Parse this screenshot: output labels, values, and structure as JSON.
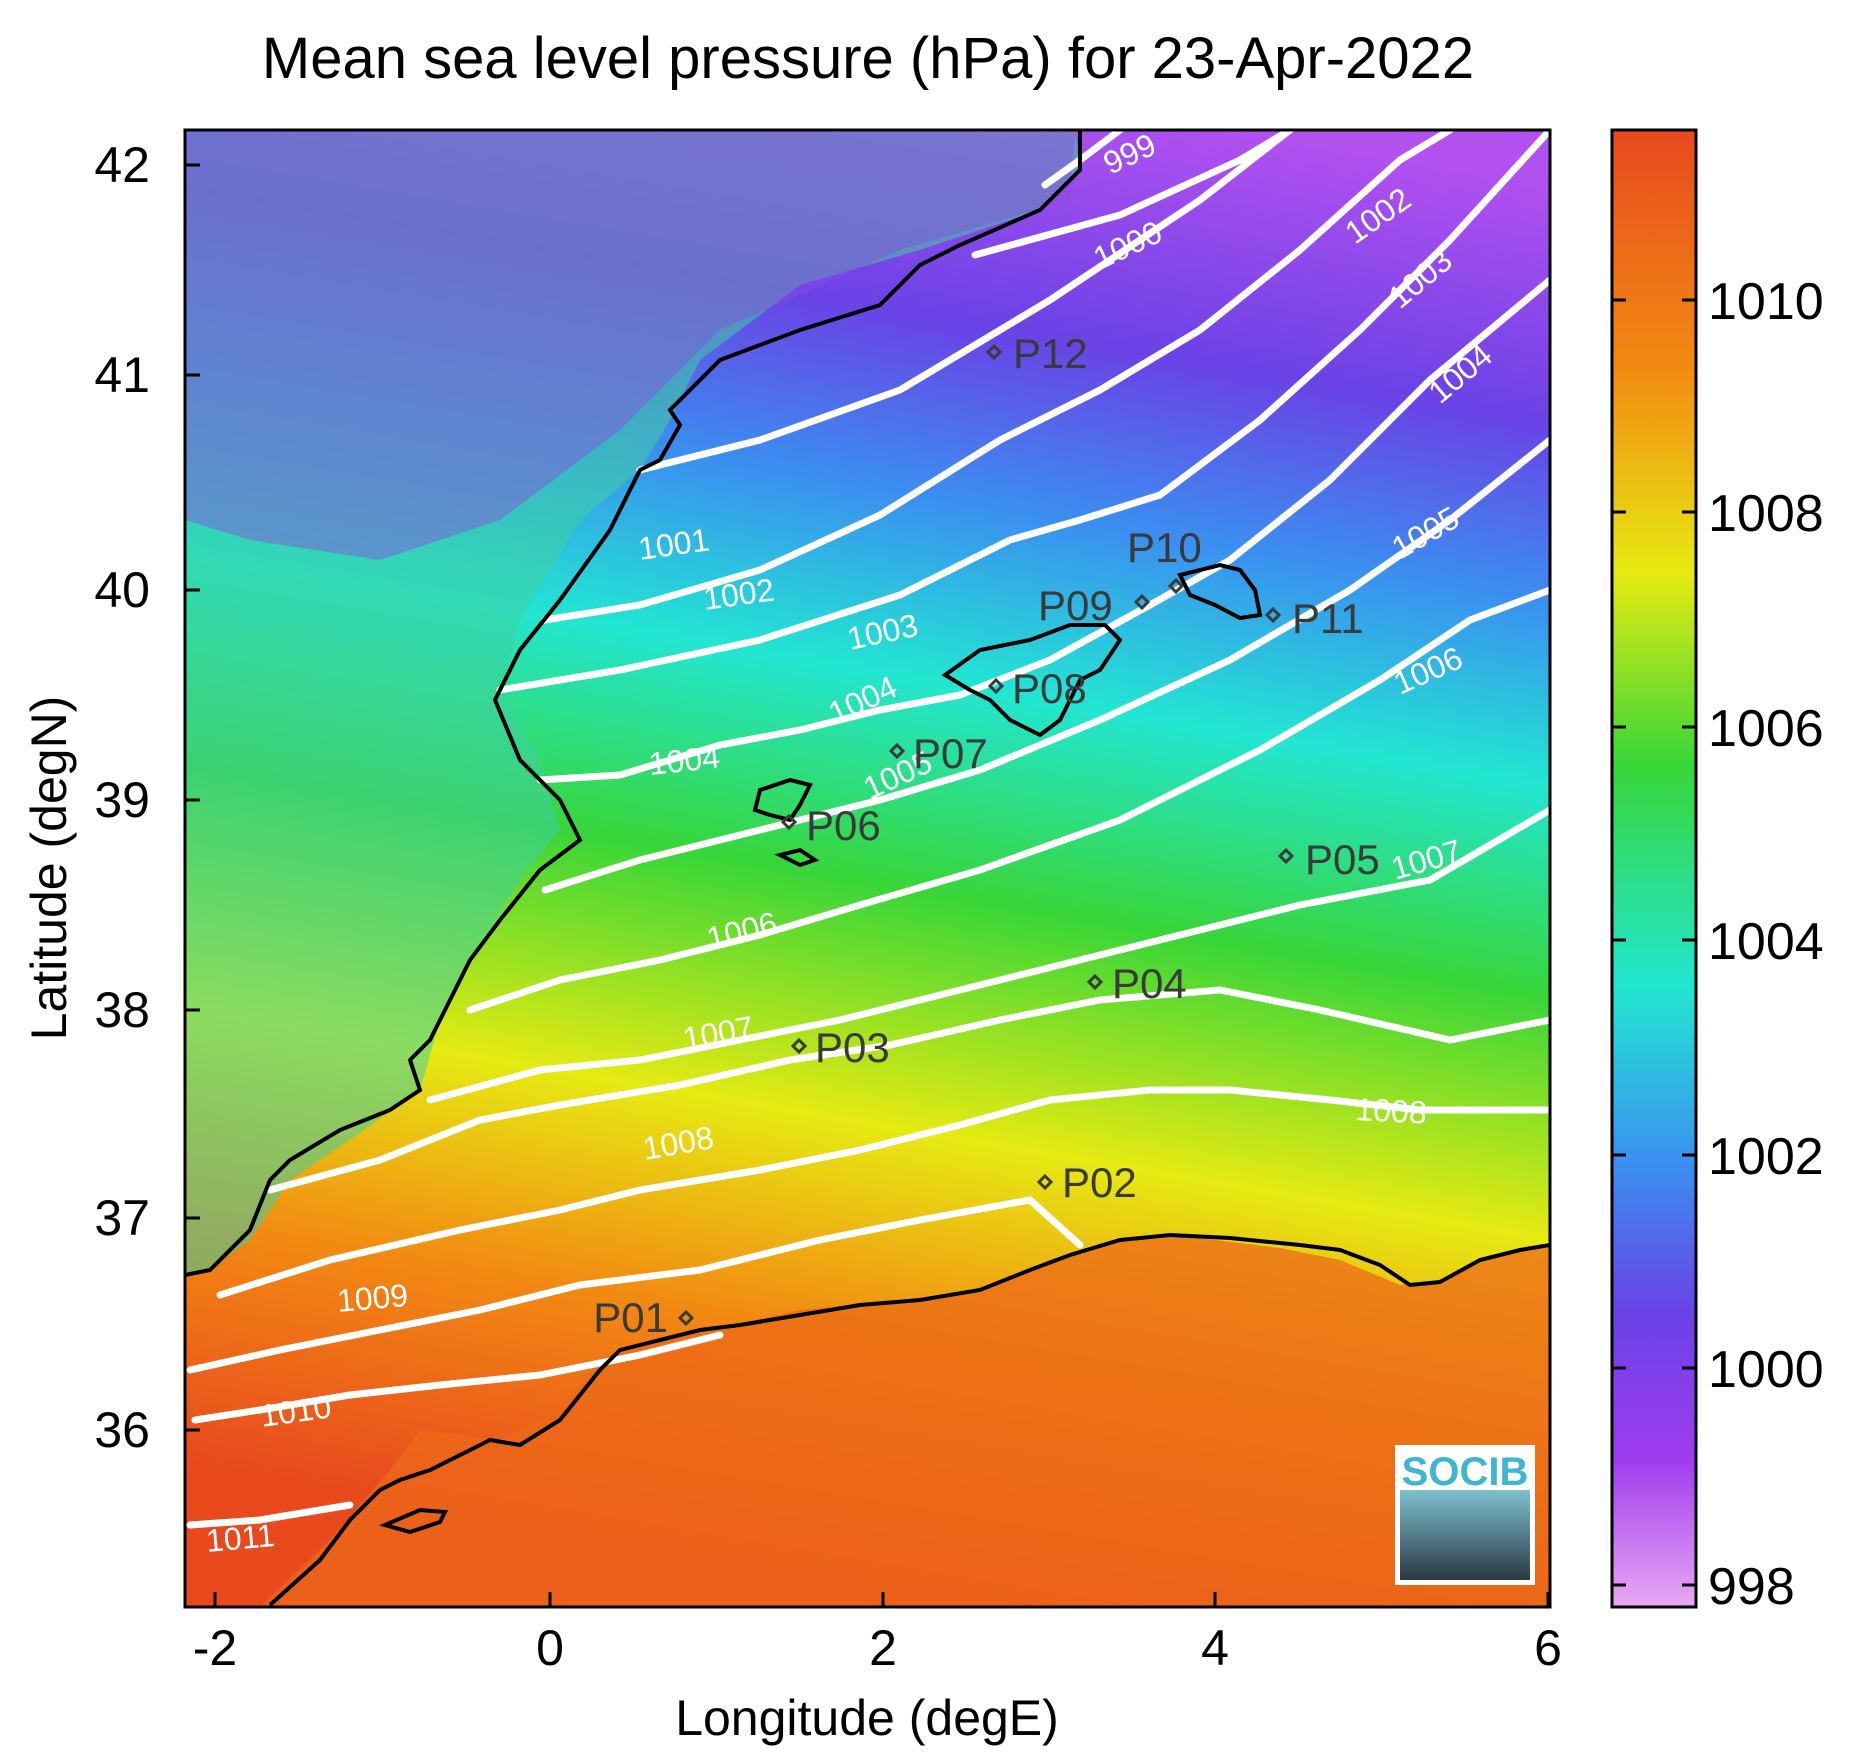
{
  "title": "Mean sea level pressure (hPa) for 23-Apr-2022",
  "xlabel": "Longitude (degE)",
  "ylabel": "Latitude (degN)",
  "x_ticks": [
    "-2",
    "0",
    "2",
    "4",
    "6"
  ],
  "y_ticks": [
    "42",
    "41",
    "40",
    "39",
    "38",
    "37",
    "36"
  ],
  "colorbar": {
    "ticks": [
      "1010",
      "1008",
      "1006",
      "1004",
      "1002",
      "1000",
      "998"
    ],
    "colors": [
      "#e84a1e",
      "#f28a12",
      "#e6ea12",
      "#38d638",
      "#22e6d2",
      "#3a90f0",
      "#6a42e6",
      "#9f3cf0",
      "#e9a8f2"
    ]
  },
  "contour_labels": [
    "999",
    "1000",
    "1001",
    "1002",
    "1002",
    "1003",
    "1003",
    "1004",
    "1004",
    "1004",
    "1005",
    "1005",
    "1006",
    "1006",
    "1007",
    "1007",
    "1008",
    "1008",
    "1009",
    "1010",
    "1011"
  ],
  "stations": [
    "P01",
    "P02",
    "P03",
    "P04",
    "P05",
    "P06",
    "P07",
    "P08",
    "P09",
    "P10",
    "P11",
    "P12"
  ],
  "logo": "SOCIB"
}
